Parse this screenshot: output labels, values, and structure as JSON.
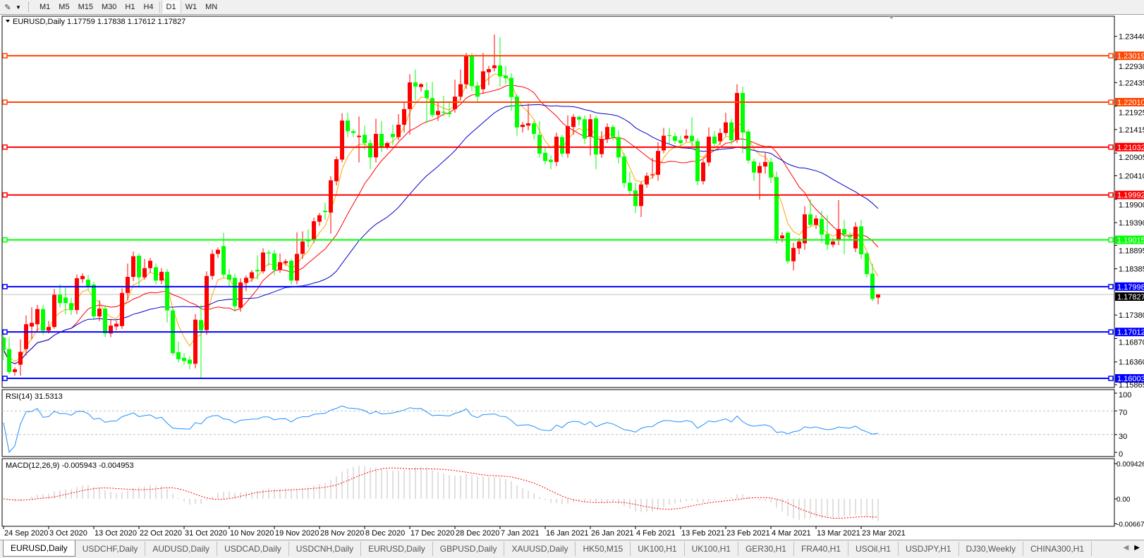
{
  "toolbar": {
    "tool_icon": "draw-objects-icon",
    "timeframes": [
      "M1",
      "M5",
      "M15",
      "M30",
      "H1",
      "H4",
      "D1",
      "W1",
      "MN"
    ],
    "active_timeframe": "D1"
  },
  "chart": {
    "title": "EURUSD,Daily",
    "ohlc_text": "1.17759 1.17838 1.17612 1.17827",
    "current_price": "1.17827",
    "bull_color": "#FF0000",
    "bear_color": "#00FF00",
    "price_ticks": [
      "1.23440",
      "1.22930",
      "1.22435",
      "1.21925",
      "1.21415",
      "1.20905",
      "1.20410",
      "1.19900",
      "1.19390",
      "1.18895",
      "1.18385",
      "1.17380",
      "1.16870",
      "1.16360",
      "1.15865"
    ],
    "levels": [
      {
        "price": "1.23019",
        "color": "#FF4500"
      },
      {
        "price": "1.22010",
        "color": "#FF4500"
      },
      {
        "price": "1.21032",
        "color": "#FF0000"
      },
      {
        "price": "1.19992",
        "color": "#FF0000"
      },
      {
        "price": "1.19015",
        "color": "#00FF00"
      },
      {
        "price": "1.17998",
        "color": "#0000FF"
      },
      {
        "price": "1.17012",
        "color": "#0000FF"
      },
      {
        "price": "1.16003",
        "color": "#0000FF"
      }
    ],
    "moving_average_colors": [
      "#FFA500",
      "#FF0000",
      "#0000CD"
    ],
    "date_labels": [
      "24 Sep 2020",
      "3 Oct 2020",
      "13 Oct 2020",
      "22 Oct 2020",
      "31 Oct 2020",
      "10 Nov 2020",
      "19 Nov 2020",
      "28 Nov 2020",
      "8 Dec 2020",
      "17 Dec 2020",
      "28 Dec 2020",
      "7 Jan 2021",
      "16 Jan 2021",
      "26 Jan 2021",
      "4 Feb 2021",
      "13 Feb 2021",
      "23 Feb 2021",
      "4 Mar 2021",
      "13 Mar 2021",
      "23 Mar 2021"
    ]
  },
  "rsi": {
    "label": "RSI(14) 31.5313",
    "ticks": [
      "100",
      "70",
      "30",
      "0"
    ],
    "levels": [
      70,
      30
    ],
    "color": "#1E90FF"
  },
  "macd": {
    "label": "MACD(12,26,9) -0.005943 -0.004953",
    "ticks": [
      "0.009426",
      "0.00",
      "-0.006675"
    ],
    "range": [
      -0.006675,
      0.009426
    ],
    "hist_color": "#C0C0C0",
    "signal_color": "#FF0000"
  },
  "tabs": [
    "EURUSD,Daily",
    "USDCHF,Daily",
    "AUDUSD,Daily",
    "USDCAD,Daily",
    "USDCNH,Daily",
    "EURUSD,Daily",
    "GBPUSD,Daily",
    "XAUUSD,Daily",
    "HK50,M15",
    "UK100,H1",
    "UK100,H1",
    "GER30,H1",
    "FRA40,H1",
    "USOil,H1",
    "USDJPY,H1",
    "DJ30,Weekly",
    "CHINA300,H1"
  ],
  "active_tab": 0,
  "chart_data": {
    "type": "candlestick",
    "symbol": "EURUSD,Daily",
    "ylim": [
      1.15865,
      1.2344
    ],
    "ohlc": [
      [
        1.1689,
        1.1705,
        1.164,
        1.1662
      ],
      [
        1.1664,
        1.1689,
        1.161,
        1.1614
      ],
      [
        1.1614,
        1.1624,
        1.1606,
        1.162
      ],
      [
        1.163,
        1.1685,
        1.1606,
        1.1658
      ],
      [
        1.1664,
        1.1737,
        1.165,
        1.1718
      ],
      [
        1.1713,
        1.1755,
        1.1685,
        1.1721
      ],
      [
        1.1718,
        1.176,
        1.17,
        1.1751
      ],
      [
        1.1751,
        1.176,
        1.1695,
        1.1704
      ],
      [
        1.1704,
        1.1725,
        1.1698,
        1.1712
      ],
      [
        1.1712,
        1.1795,
        1.1708,
        1.1782
      ],
      [
        1.1782,
        1.1805,
        1.1755,
        1.1764
      ],
      [
        1.1776,
        1.1798,
        1.174,
        1.1764
      ],
      [
        1.1764,
        1.1775,
        1.1738,
        1.1749
      ],
      [
        1.1749,
        1.1826,
        1.174,
        1.1818
      ],
      [
        1.1816,
        1.1829,
        1.1808,
        1.1823
      ],
      [
        1.1815,
        1.1825,
        1.1792,
        1.18
      ],
      [
        1.1804,
        1.181,
        1.173,
        1.1735
      ],
      [
        1.1735,
        1.177,
        1.1725,
        1.1752
      ],
      [
        1.1752,
        1.1758,
        1.169,
        1.1698
      ],
      [
        1.1698,
        1.173,
        1.169,
        1.1715
      ],
      [
        1.1713,
        1.1725,
        1.1705,
        1.1719
      ],
      [
        1.1714,
        1.1796,
        1.1708,
        1.1786
      ],
      [
        1.1786,
        1.185,
        1.177,
        1.1821
      ],
      [
        1.1821,
        1.1876,
        1.1812,
        1.1866
      ],
      [
        1.1867,
        1.1872,
        1.18,
        1.182
      ],
      [
        1.182,
        1.186,
        1.1815,
        1.184
      ],
      [
        1.184,
        1.1862,
        1.183,
        1.1856
      ],
      [
        1.1842,
        1.185,
        1.1805,
        1.1813
      ],
      [
        1.1813,
        1.184,
        1.1805,
        1.1832
      ],
      [
        1.1832,
        1.1838,
        1.1722,
        1.1748
      ],
      [
        1.1748,
        1.1752,
        1.165,
        1.1655
      ],
      [
        1.1657,
        1.168,
        1.1635,
        1.1642
      ],
      [
        1.1645,
        1.1655,
        1.163,
        1.1638
      ],
      [
        1.1641,
        1.1648,
        1.162,
        1.1632
      ],
      [
        1.1632,
        1.174,
        1.1622,
        1.1728
      ],
      [
        1.1727,
        1.176,
        1.1602,
        1.1705
      ],
      [
        1.1705,
        1.1833,
        1.1695,
        1.1823
      ],
      [
        1.1823,
        1.188,
        1.1815,
        1.1871
      ],
      [
        1.1871,
        1.1885,
        1.1862,
        1.188
      ],
      [
        1.1888,
        1.1917,
        1.182,
        1.1826
      ],
      [
        1.1826,
        1.1838,
        1.18,
        1.1815
      ],
      [
        1.1819,
        1.1828,
        1.1745,
        1.1757
      ],
      [
        1.1754,
        1.1818,
        1.1745,
        1.1809
      ],
      [
        1.1808,
        1.1824,
        1.179,
        1.1819
      ],
      [
        1.1818,
        1.1836,
        1.181,
        1.1831
      ],
      [
        1.1836,
        1.1868,
        1.1815,
        1.1833
      ],
      [
        1.1833,
        1.1883,
        1.1828,
        1.1874
      ],
      [
        1.1874,
        1.188,
        1.1845,
        1.1872
      ],
      [
        1.1872,
        1.188,
        1.1825,
        1.1836
      ],
      [
        1.1836,
        1.1872,
        1.183,
        1.1853
      ],
      [
        1.1851,
        1.186,
        1.1845,
        1.1855
      ],
      [
        1.1856,
        1.186,
        1.1805,
        1.1813
      ],
      [
        1.1813,
        1.1918,
        1.1805,
        1.1871
      ],
      [
        1.1871,
        1.192,
        1.186,
        1.1898
      ],
      [
        1.19,
        1.1925,
        1.1885,
        1.1899
      ],
      [
        1.1902,
        1.195,
        1.1895,
        1.1942
      ],
      [
        1.1941,
        1.196,
        1.1932,
        1.1955
      ],
      [
        1.1965,
        1.1982,
        1.1945,
        1.1962
      ],
      [
        1.1961,
        1.204,
        1.1915,
        1.2031
      ],
      [
        1.2029,
        1.2083,
        1.202,
        1.2077
      ],
      [
        1.2076,
        1.2177,
        1.207,
        1.2161
      ],
      [
        1.2161,
        1.2178,
        1.2125,
        1.2138
      ],
      [
        1.2138,
        1.2142,
        1.2125,
        1.2134
      ],
      [
        1.2125,
        1.217,
        1.207,
        1.2128
      ],
      [
        1.213,
        1.215,
        1.2098,
        1.2112
      ],
      [
        1.2112,
        1.212,
        1.2055,
        1.2081
      ],
      [
        1.2081,
        1.2165,
        1.207,
        1.2132
      ],
      [
        1.2132,
        1.216,
        1.2092,
        1.2104
      ],
      [
        1.2104,
        1.2115,
        1.2098,
        1.2112
      ],
      [
        1.2132,
        1.2152,
        1.2108,
        1.2125
      ],
      [
        1.2125,
        1.2175,
        1.2118,
        1.2152
      ],
      [
        1.2152,
        1.22,
        1.2135,
        1.2186
      ],
      [
        1.2186,
        1.2262,
        1.213,
        1.2244
      ],
      [
        1.2244,
        1.2272,
        1.2205,
        1.2235
      ],
      [
        1.2234,
        1.2243,
        1.2224,
        1.224
      ],
      [
        1.2227,
        1.2244,
        1.2155,
        1.221
      ],
      [
        1.221,
        1.2245,
        1.2168,
        1.2173
      ],
      [
        1.2173,
        1.22,
        1.216,
        1.2182
      ],
      [
        1.218,
        1.2215,
        1.217,
        1.2178
      ],
      [
        1.2178,
        1.22,
        1.2168,
        1.2175
      ],
      [
        1.2186,
        1.225,
        1.2178,
        1.2213
      ],
      [
        1.2213,
        1.2272,
        1.2205,
        1.224
      ],
      [
        1.224,
        1.2308,
        1.223,
        1.2302
      ],
      [
        1.2302,
        1.2308,
        1.2225,
        1.2236
      ],
      [
        1.2237,
        1.2245,
        1.22,
        1.2213
      ],
      [
        1.2229,
        1.2308,
        1.222,
        1.2268
      ],
      [
        1.2266,
        1.228,
        1.2238,
        1.2273
      ],
      [
        1.2275,
        1.2348,
        1.2268,
        1.2281
      ],
      [
        1.2281,
        1.2342,
        1.2235,
        1.2257
      ],
      [
        1.2259,
        1.228,
        1.224,
        1.2253
      ],
      [
        1.2254,
        1.2264,
        1.2182,
        1.2212
      ],
      [
        1.2213,
        1.2218,
        1.2128,
        1.2146
      ],
      [
        1.2147,
        1.2158,
        1.2135,
        1.2152
      ],
      [
        1.215,
        1.2198,
        1.214,
        1.2155
      ],
      [
        1.2155,
        1.216,
        1.212,
        1.2132
      ],
      [
        1.213,
        1.216,
        1.208,
        1.2089
      ],
      [
        1.2091,
        1.2102,
        1.2065,
        1.2073
      ],
      [
        1.2076,
        1.2085,
        1.2055,
        1.2071
      ],
      [
        1.2071,
        1.2135,
        1.2062,
        1.2126
      ],
      [
        1.2125,
        1.213,
        1.2082,
        1.2089
      ],
      [
        1.2089,
        1.2172,
        1.208,
        1.2149
      ],
      [
        1.2147,
        1.2175,
        1.213,
        1.2169
      ],
      [
        1.2169,
        1.2172,
        1.215,
        1.2163
      ],
      [
        1.2164,
        1.2172,
        1.211,
        1.2122
      ],
      [
        1.2126,
        1.2175,
        1.2085,
        1.2164
      ],
      [
        1.2166,
        1.2172,
        1.2055,
        1.2087
      ],
      [
        1.2088,
        1.2138,
        1.208,
        1.2121
      ],
      [
        1.2121,
        1.2155,
        1.2112,
        1.2147
      ],
      [
        1.2147,
        1.2152,
        1.2118,
        1.2125
      ],
      [
        1.2125,
        1.214,
        1.2068,
        1.2081
      ],
      [
        1.2083,
        1.209,
        1.2015,
        1.2025
      ],
      [
        1.2026,
        1.205,
        1.1998,
        1.2008
      ],
      [
        1.2009,
        1.2025,
        1.196,
        1.1975
      ],
      [
        1.1975,
        1.2028,
        1.1951,
        1.2022
      ],
      [
        1.2022,
        1.2048,
        1.2015,
        1.2041
      ],
      [
        1.2042,
        1.208,
        1.2035,
        1.2044
      ],
      [
        1.2043,
        1.2114,
        1.203,
        1.2095
      ],
      [
        1.2096,
        1.2145,
        1.209,
        1.2128
      ],
      [
        1.2129,
        1.2145,
        1.211,
        1.2128
      ],
      [
        1.2127,
        1.2135,
        1.211,
        1.2117
      ],
      [
        1.2118,
        1.2128,
        1.2105,
        1.2112
      ],
      [
        1.2122,
        1.2142,
        1.2115,
        1.2128
      ],
      [
        1.2128,
        1.2168,
        1.2105,
        1.2116
      ],
      [
        1.2116,
        1.2123,
        1.202,
        1.2029
      ],
      [
        1.2029,
        1.2075,
        1.2022,
        1.207
      ],
      [
        1.207,
        1.2146,
        1.2062,
        1.2126
      ],
      [
        1.2126,
        1.2138,
        1.2105,
        1.2111
      ],
      [
        1.2116,
        1.2144,
        1.2108,
        1.2134
      ],
      [
        1.2134,
        1.2178,
        1.2128,
        1.2157
      ],
      [
        1.2157,
        1.2165,
        1.2108,
        1.2118
      ],
      [
        1.2119,
        1.224,
        1.2112,
        1.2221
      ],
      [
        1.2221,
        1.2235,
        1.209,
        1.2135
      ],
      [
        1.2137,
        1.2142,
        1.2068,
        1.2074
      ],
      [
        1.2072,
        1.2078,
        1.203,
        1.2048
      ],
      [
        1.2047,
        1.207,
        1.1989,
        1.2062
      ],
      [
        1.2061,
        1.2093,
        1.2045,
        1.2071
      ],
      [
        1.2071,
        1.208,
        1.2025,
        1.2037
      ],
      [
        1.2038,
        1.205,
        1.1893,
        1.1903
      ],
      [
        1.1905,
        1.1918,
        1.1896,
        1.1911
      ],
      [
        1.1917,
        1.192,
        1.185,
        1.1855
      ],
      [
        1.1855,
        1.1895,
        1.1835,
        1.1884
      ],
      [
        1.1883,
        1.1905,
        1.187,
        1.1898
      ],
      [
        1.1894,
        1.1975,
        1.188,
        1.1957
      ],
      [
        1.1957,
        1.199,
        1.193,
        1.1934
      ],
      [
        1.1934,
        1.1955,
        1.1925,
        1.1948
      ],
      [
        1.1947,
        1.1965,
        1.1895,
        1.1913
      ],
      [
        1.1914,
        1.1955,
        1.188,
        1.1891
      ],
      [
        1.1891,
        1.1905,
        1.1885,
        1.1898
      ],
      [
        1.1901,
        1.1988,
        1.189,
        1.1925
      ],
      [
        1.1925,
        1.1945,
        1.187,
        1.1913
      ],
      [
        1.191,
        1.1918,
        1.19,
        1.1907
      ],
      [
        1.1883,
        1.194,
        1.1875,
        1.193
      ],
      [
        1.1931,
        1.1945,
        1.186,
        1.187
      ],
      [
        1.1872,
        1.1875,
        1.182,
        1.1827
      ],
      [
        1.1828,
        1.185,
        1.1768,
        1.1773
      ],
      [
        1.17759,
        1.17838,
        1.17612,
        1.17827
      ]
    ]
  }
}
